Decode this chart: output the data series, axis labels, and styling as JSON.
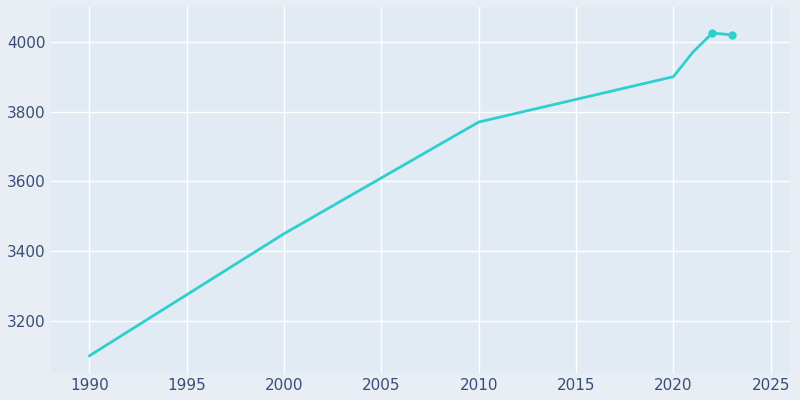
{
  "years": [
    1990,
    2000,
    2010,
    2020,
    2021,
    2022,
    2023
  ],
  "population": [
    3100,
    3450,
    3770,
    3900,
    3970,
    4025,
    4020
  ],
  "line_color": "#2ECFCF",
  "marker_years": [
    2022,
    2023
  ],
  "marker_values": [
    4025,
    4020
  ],
  "bg_color": "#E8EEF4",
  "plot_bg_color": "#E2EAF4",
  "grid_color": "#FFFFFF",
  "xlim": [
    1988,
    2026
  ],
  "ylim": [
    3050,
    4100
  ],
  "xticks": [
    1990,
    1995,
    2000,
    2005,
    2010,
    2015,
    2020,
    2025
  ],
  "yticks": [
    3200,
    3400,
    3600,
    3800,
    4000
  ],
  "tick_label_color": "#3A4D7A",
  "tick_fontsize": 11
}
